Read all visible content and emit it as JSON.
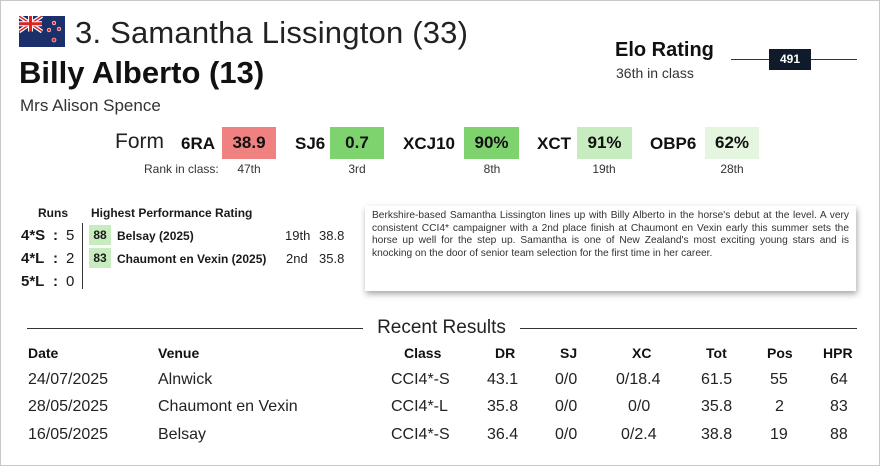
{
  "header": {
    "rider": "3. Samantha Lissington (33)",
    "horse": "Billy Alberto (13)",
    "owner": "Mrs Alison Spence",
    "flag_icon": "new-zealand-flag-icon"
  },
  "elo": {
    "title": "Elo Rating",
    "class_rank": "36th in class",
    "value": "491"
  },
  "form": {
    "label": "Form",
    "rank_label": "Rank in class:",
    "phases": [
      {
        "name": "6RA",
        "value": "38.9",
        "rank": "47th",
        "color": "#ef8181"
      },
      {
        "name": "SJ6",
        "value": "0.7",
        "rank": "3rd",
        "color": "#7ed36f"
      },
      {
        "name": "XCJ10",
        "value": "90%",
        "rank": "8th",
        "color": "#7ed36f"
      },
      {
        "name": "XCT",
        "value": "91%",
        "rank": "19th",
        "color": "#c6ecbf"
      },
      {
        "name": "OBP6",
        "value": "62%",
        "rank": "28th",
        "color": "#e4f6e0"
      }
    ]
  },
  "runs": {
    "header": "Runs",
    "rows": [
      {
        "level": "4*S",
        "sep": ":",
        "count": "5"
      },
      {
        "level": "4*L",
        "sep": ":",
        "count": "2"
      },
      {
        "level": "5*L",
        "sep": ":",
        "count": "0"
      }
    ]
  },
  "hpr": {
    "header": "Highest Performance Rating",
    "rows": [
      {
        "score": "88",
        "name": "Belsay (2025)",
        "pos": "19th",
        "result": "38.8"
      },
      {
        "score": "83",
        "name": "Chaumont en Vexin (2025)",
        "pos": "2nd",
        "result": "35.8"
      }
    ]
  },
  "blurb": "Berkshire-based Samantha Lissington lines up with Billy Alberto in the horse's debut at the level. A very consistent CCI4* campaigner with a 2nd place finish at Chaumont en Vexin early this summer sets the horse up well for the step up. Samantha is one of New Zealand's most exciting young stars and is knocking on the door of senior team selection for the first time in her career.",
  "results": {
    "title": "Recent Results",
    "columns": [
      "Date",
      "Venue",
      "Class",
      "DR",
      "SJ",
      "XC",
      "Tot",
      "Pos",
      "HPR"
    ],
    "rows": [
      [
        "24/07/2025",
        "Alnwick",
        "CCI4*-S",
        "43.1",
        "0/0",
        "0/18.4",
        "61.5",
        "55",
        "64"
      ],
      [
        "28/05/2025",
        "Chaumont en Vexin",
        "CCI4*-L",
        "35.8",
        "0/0",
        "0/0",
        "35.8",
        "2",
        "83"
      ],
      [
        "16/05/2025",
        "Belsay",
        "CCI4*-S",
        "36.4",
        "0/0",
        "0/2.4",
        "38.8",
        "19",
        "88"
      ]
    ]
  }
}
